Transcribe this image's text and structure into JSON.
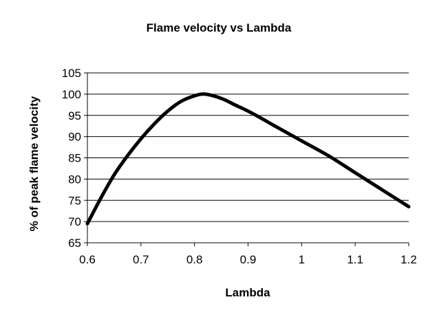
{
  "chart_data": {
    "type": "line",
    "title": "Flame velocity vs Lambda",
    "xlabel": "Lambda",
    "ylabel": "% of peak flame velocity",
    "xlim": [
      0.6,
      1.2
    ],
    "ylim": [
      65,
      105
    ],
    "xticks": [
      0.6,
      0.7,
      0.8,
      0.9,
      1.0,
      1.1,
      1.2
    ],
    "xtick_labels": [
      "0.6",
      "0.7",
      "0.8",
      "0.9",
      "1",
      "1.1",
      "1.2"
    ],
    "yticks": [
      65,
      70,
      75,
      80,
      85,
      90,
      95,
      100,
      105
    ],
    "ytick_labels": [
      "65",
      "70",
      "75",
      "80",
      "85",
      "90",
      "95",
      "100",
      "105"
    ],
    "grid": true,
    "legend": false,
    "series": [
      {
        "name": "Flame velocity",
        "x": [
          0.6,
          0.625,
          0.65,
          0.675,
          0.7,
          0.725,
          0.75,
          0.775,
          0.8,
          0.82,
          0.85,
          0.875,
          0.9,
          0.925,
          0.95,
          1.0,
          1.05,
          1.1,
          1.15,
          1.2
        ],
        "y": [
          69.5,
          75.5,
          81.0,
          85.5,
          89.5,
          93.0,
          96.0,
          98.3,
          99.6,
          100.0,
          99.0,
          97.5,
          96.0,
          94.3,
          92.5,
          89.0,
          85.5,
          81.5,
          77.5,
          73.5
        ]
      }
    ]
  }
}
